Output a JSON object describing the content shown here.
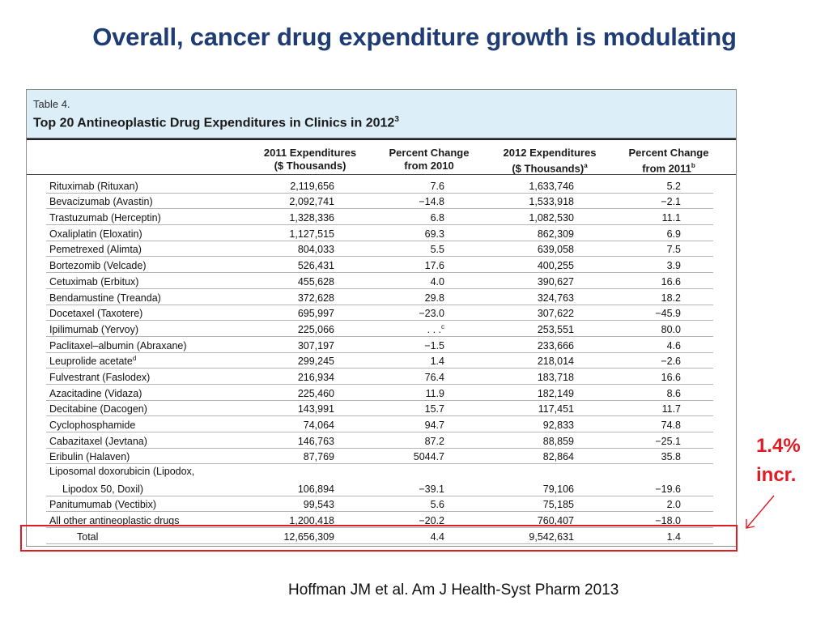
{
  "slide": {
    "title": "Overall, cancer drug expenditure growth is modulating",
    "citation": "Hoffman JM et al. Am J Health-Syst Pharm 2013"
  },
  "table": {
    "number": "Table 4.",
    "caption": "Top 20 Antineoplastic Drug Expenditures in Clinics in 2012",
    "caption_sup": "3",
    "headers": {
      "col1_line1": "2011 Expenditures",
      "col1_line2": "($ Thousands)",
      "col2_line1": "Percent Change",
      "col2_line2": "from 2010",
      "col3_line1": "2012 Expenditures",
      "col3_line2": "($ Thousands)",
      "col3_sup": "a",
      "col4_line1": "Percent Change",
      "col4_line2": "from 2011",
      "col4_sup": "b"
    },
    "rows": [
      {
        "drug": "Rituximab (Rituxan)",
        "v2011": "2,119,656",
        "pct2010": "7.6",
        "v2012": "1,633,746",
        "pct2011": "5.2"
      },
      {
        "drug": "Bevacizumab (Avastin)",
        "v2011": "2,092,741",
        "pct2010": "−14.8",
        "v2012": "1,533,918",
        "pct2011": "−2.1"
      },
      {
        "drug": "Trastuzumab (Herceptin)",
        "v2011": "1,328,336",
        "pct2010": "6.8",
        "v2012": "1,082,530",
        "pct2011": "11.1"
      },
      {
        "drug": "Oxaliplatin (Eloxatin)",
        "v2011": "1,127,515",
        "pct2010": "69.3",
        "v2012": "862,309",
        "pct2011": "6.9"
      },
      {
        "drug": "Pemetrexed (Alimta)",
        "v2011": "804,033",
        "pct2010": "5.5",
        "v2012": "639,058",
        "pct2011": "7.5"
      },
      {
        "drug": "Bortezomib (Velcade)",
        "v2011": "526,431",
        "pct2010": "17.6",
        "v2012": "400,255",
        "pct2011": "3.9"
      },
      {
        "drug": "Cetuximab (Erbitux)",
        "v2011": "455,628",
        "pct2010": "4.0",
        "v2012": "390,627",
        "pct2011": "16.6"
      },
      {
        "drug": "Bendamustine (Treanda)",
        "v2011": "372,628",
        "pct2010": "29.8",
        "v2012": "324,763",
        "pct2011": "18.2"
      },
      {
        "drug": "Docetaxel (Taxotere)",
        "v2011": "695,997",
        "pct2010": "−23.0",
        "v2012": "307,622",
        "pct2011": "−45.9"
      },
      {
        "drug": "Ipilimumab (Yervoy)",
        "v2011": "225,066",
        "pct2010": ". . .",
        "pct2010_sup": "c",
        "v2012": "253,551",
        "pct2011": "80.0"
      },
      {
        "drug": "Paclitaxel–albumin (Abraxane)",
        "v2011": "307,197",
        "pct2010": "−1.5",
        "v2012": "233,666",
        "pct2011": "4.6"
      },
      {
        "drug": "Leuprolide acetate",
        "drug_sup": "d",
        "v2011": "299,245",
        "pct2010": "1.4",
        "v2012": "218,014",
        "pct2011": "−2.6"
      },
      {
        "drug": "Fulvestrant (Faslodex)",
        "v2011": "216,934",
        "pct2010": "76.4",
        "v2012": "183,718",
        "pct2011": "16.6"
      },
      {
        "drug": "Azacitadine (Vidaza)",
        "v2011": "225,460",
        "pct2010": "11.9",
        "v2012": "182,149",
        "pct2011": "8.6"
      },
      {
        "drug": "Decitabine (Dacogen)",
        "v2011": "143,991",
        "pct2010": "15.7",
        "v2012": "117,451",
        "pct2011": "11.7"
      },
      {
        "drug": "Cyclophosphamide",
        "v2011": "74,064",
        "pct2010": "94.7",
        "v2012": "92,833",
        "pct2011": "74.8"
      },
      {
        "drug": "Cabazitaxel (Jevtana)",
        "v2011": "146,763",
        "pct2010": "87.2",
        "v2012": "88,859",
        "pct2011": "−25.1"
      },
      {
        "drug": "Eribulin (Halaven)",
        "v2011": "87,769",
        "pct2010": "5044.7",
        "v2012": "82,864",
        "pct2011": "35.8"
      },
      {
        "drug": "Liposomal doxorubicin (Lipodox,",
        "drug_line2": "Lipodox 50, Doxil)",
        "v2011": "106,894",
        "pct2010": "−39.1",
        "v2012": "79,106",
        "pct2011": "−19.6"
      },
      {
        "drug": "Panitumumab (Vectibix)",
        "v2011": "99,543",
        "pct2010": "5.6",
        "v2012": "75,185",
        "pct2011": "2.0"
      },
      {
        "drug": "All other antineoplastic drugs",
        "v2011": "1,200,418",
        "pct2010": "−20.2",
        "v2012": "760,407",
        "pct2011": "−18.0"
      },
      {
        "drug": "Total",
        "v2011": "12,656,309",
        "pct2010": "4.4",
        "v2012": "9,542,631",
        "pct2011": "1.4"
      }
    ]
  },
  "annotation": {
    "line1": "1.4%",
    "line2": "incr.",
    "color": "#E01B24"
  }
}
